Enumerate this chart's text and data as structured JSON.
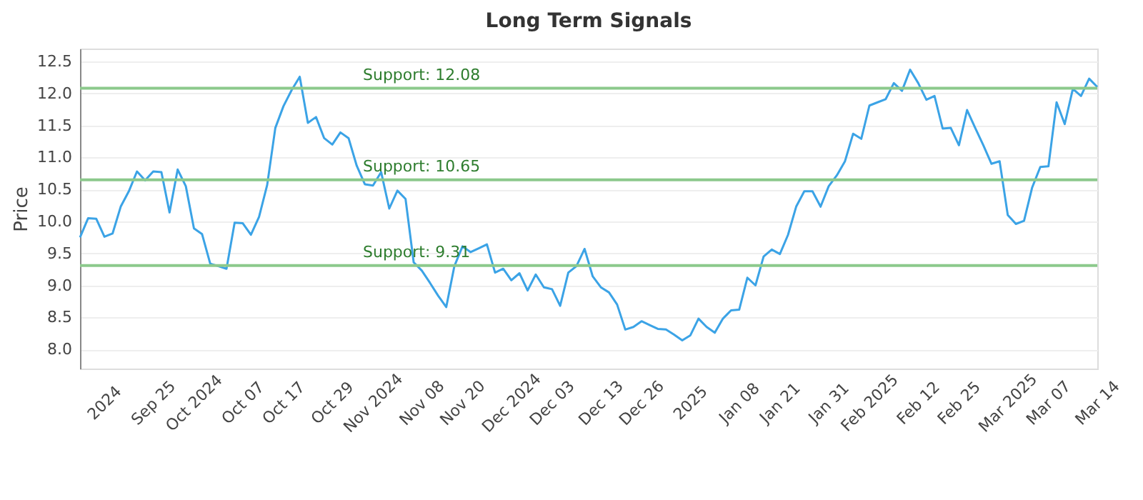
{
  "chart_data": {
    "type": "line",
    "title": "Long Term Signals",
    "ylabel": "Price",
    "categories": [
      null,
      null,
      null,
      "2024",
      null,
      null,
      null,
      null,
      null,
      "Sep 25",
      null,
      null,
      null,
      null,
      "Oct 2024",
      null,
      null,
      null,
      null,
      null,
      "Oct 07",
      null,
      null,
      null,
      null,
      "Oct 17",
      null,
      null,
      null,
      null,
      null,
      "Oct 29",
      null,
      null,
      null,
      null,
      "Nov 2024",
      null,
      null,
      null,
      null,
      null,
      "Nov 08",
      null,
      null,
      null,
      null,
      "Nov 20",
      null,
      null,
      null,
      null,
      null,
      "Dec 2024",
      null,
      null,
      null,
      null,
      "Dec 03",
      null,
      null,
      null,
      null,
      null,
      "Dec 13",
      null,
      null,
      null,
      null,
      "Dec 26",
      null,
      null,
      null,
      null,
      null,
      "2025",
      null,
      null,
      null,
      null,
      null,
      "Jan 08",
      null,
      null,
      null,
      null,
      "Jan 21",
      null,
      null,
      null,
      null,
      null,
      "Jan 31",
      null,
      null,
      null,
      null,
      "Feb 2025",
      null,
      null,
      null,
      null,
      null,
      "Feb 12",
      null,
      null,
      null,
      null,
      "Feb 25",
      null,
      null,
      null,
      null,
      null,
      "Mar 2025",
      null,
      null,
      null,
      null,
      "Mar 07",
      null,
      null,
      null,
      null,
      null,
      "Mar 14"
    ],
    "series": [
      {
        "color": "#3ba3e6",
        "values": [
          9.75,
          10.05,
          10.04,
          9.76,
          9.81,
          10.23,
          10.47,
          10.78,
          10.64,
          10.78,
          10.77,
          10.14,
          10.81,
          10.55,
          9.89,
          9.8,
          9.34,
          9.3,
          9.26,
          9.98,
          9.97,
          9.79,
          10.07,
          10.57,
          11.46,
          11.8,
          12.05,
          12.26,
          11.54,
          11.63,
          11.3,
          11.2,
          11.39,
          11.3,
          10.87,
          10.58,
          10.56,
          10.77,
          10.2,
          10.48,
          10.35,
          9.36,
          9.23,
          9.04,
          8.84,
          8.66,
          9.3,
          9.61,
          9.52,
          9.58,
          9.64,
          9.2,
          9.26,
          9.08,
          9.19,
          8.92,
          9.17,
          8.97,
          8.94,
          8.68,
          9.2,
          9.3,
          9.57,
          9.14,
          8.97,
          8.89,
          8.7,
          8.31,
          8.35,
          8.44,
          8.38,
          8.32,
          8.31,
          8.23,
          8.14,
          8.22,
          8.48,
          8.35,
          8.26,
          8.48,
          8.61,
          8.62,
          9.12,
          9.0,
          9.45,
          9.56,
          9.49,
          9.79,
          10.23,
          10.47,
          10.47,
          10.23,
          10.55,
          10.72,
          10.94,
          11.37,
          11.29,
          11.81,
          11.86,
          11.91,
          12.16,
          12.04,
          12.37,
          12.16,
          11.9,
          11.96,
          11.45,
          11.46,
          11.19,
          11.74,
          11.46,
          11.19,
          10.9,
          10.94,
          10.1,
          9.96,
          10.01,
          10.53,
          10.85,
          10.86,
          11.86,
          11.52,
          12.07,
          11.96,
          12.23,
          12.1
        ]
      }
    ],
    "ylim": [
      7.7,
      12.7
    ],
    "yticks": [
      {
        "value": 8.0,
        "label": "8.0"
      },
      8.5,
      {
        "value": 9.0,
        "label": "9.0"
      },
      9.5,
      {
        "value": 10.0,
        "label": "10.0"
      },
      10.5,
      {
        "value": 11.0,
        "label": "11.0"
      },
      11.5,
      {
        "value": 12.0,
        "label": "12.0"
      },
      12.5
    ],
    "ref_lines": [
      {
        "axis": "y",
        "value": 12.08,
        "label": "Support: 12.08",
        "color": "#8cc98c"
      },
      {
        "axis": "y",
        "value": 10.65,
        "label": "Support: 10.65",
        "color": "#8cc98c"
      },
      {
        "axis": "y",
        "value": 9.31,
        "label": "Support: 9.31",
        "color": "#8cc98c"
      }
    ],
    "grid": "y",
    "marker": "none",
    "line_style": "solid"
  }
}
